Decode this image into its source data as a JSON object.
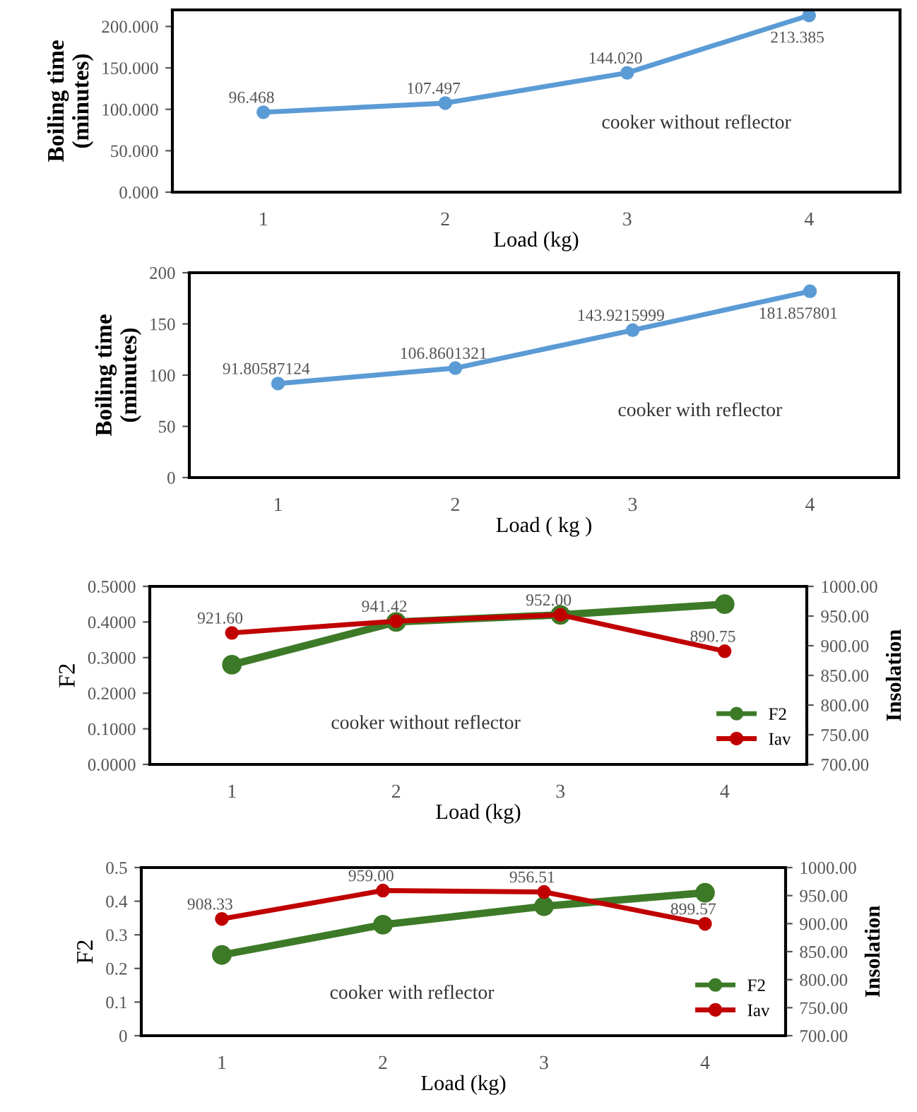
{
  "chart_data": [
    {
      "type": "line",
      "categories": [
        "1",
        "2",
        "3",
        "4"
      ],
      "xlabel": "Load (kg)",
      "ylabel": "Boiling time\n(minutes)",
      "ylim": [
        0,
        220
      ],
      "yticks": [
        {
          "value": 0,
          "label": "0.000"
        },
        {
          "value": 50,
          "label": "50.000"
        },
        {
          "value": 100,
          "label": "100.000"
        },
        {
          "value": 150,
          "label": "150.000"
        },
        {
          "value": 200,
          "label": "200.000"
        }
      ],
      "series": [
        {
          "color": "#5b9bd5",
          "values": [
            96.468,
            107.497,
            144.02,
            213.385
          ],
          "value_labels": [
            "96.468",
            "107.497",
            "144.020",
            "213.385"
          ]
        }
      ],
      "marker": "circle",
      "grid": false,
      "legend": false,
      "annotations": [
        "cooker without reflector"
      ]
    },
    {
      "type": "line",
      "categories": [
        "1",
        "2",
        "3",
        "4"
      ],
      "xlabel": "Load ( kg )",
      "ylabel": "Boiling time\n(minutes)",
      "ylim": [
        0,
        200
      ],
      "yticks": [
        0,
        50,
        100,
        150,
        200
      ],
      "series": [
        {
          "color": "#5b9bd5",
          "values": [
            91.80587124,
            106.8601321,
            143.9215999,
            181.857801
          ],
          "value_labels": [
            "91.80587124",
            "106.8601321",
            "143.9215999",
            "181.857801"
          ]
        }
      ],
      "marker": "circle",
      "grid": false,
      "legend": false,
      "annotations": [
        "cooker with reflector"
      ]
    },
    {
      "type": "line",
      "categories": [
        "1",
        "2",
        "3",
        "4"
      ],
      "xlabel": "Load (kg)",
      "ylabel": "F2",
      "y2label": "Insolation",
      "ylim": [
        0,
        0.5
      ],
      "yticks": [
        {
          "value": 0,
          "label": "0.0000"
        },
        {
          "value": 0.1,
          "label": "0.1000"
        },
        {
          "value": 0.2,
          "label": "0.2000"
        },
        {
          "value": 0.3,
          "label": "0.3000"
        },
        {
          "value": 0.4,
          "label": "0.4000"
        },
        {
          "value": 0.5,
          "label": "0.5000"
        }
      ],
      "y2lim": [
        700,
        1000
      ],
      "y2ticks": [
        {
          "value": 700,
          "label": "700.00"
        },
        {
          "value": 750,
          "label": "750.00"
        },
        {
          "value": 800,
          "label": "800.00"
        },
        {
          "value": 850,
          "label": "850.00"
        },
        {
          "value": 900,
          "label": "900.00"
        },
        {
          "value": 950,
          "label": "950.00"
        },
        {
          "value": 1000,
          "label": "1000.00"
        }
      ],
      "series": [
        {
          "name": "F2",
          "color": "#3d7a28",
          "values": [
            0.28,
            0.4,
            0.42,
            0.45
          ]
        },
        {
          "name": "Iav",
          "color": "#c00000",
          "axis": "y2",
          "values": [
            921.6,
            941.42,
            952.0,
            890.75
          ],
          "value_labels": [
            "921.60",
            "941.42",
            "952.00",
            "890.75"
          ]
        }
      ],
      "marker": "circle",
      "grid": false,
      "legend": "bottom right",
      "annotations": [
        "cooker without reflector"
      ]
    },
    {
      "type": "line",
      "categories": [
        "1",
        "2",
        "3",
        "4"
      ],
      "xlabel": "Load (kg)",
      "ylabel": "F2",
      "y2label": "Insolation",
      "ylim": [
        0,
        0.5
      ],
      "yticks": [
        0,
        0.1,
        0.2,
        0.3,
        0.4,
        0.5
      ],
      "y2lim": [
        700,
        1000
      ],
      "y2ticks": [
        {
          "value": 700,
          "label": "700.00"
        },
        {
          "value": 750,
          "label": "750.00"
        },
        {
          "value": 800,
          "label": "800.00"
        },
        {
          "value": 850,
          "label": "850.00"
        },
        {
          "value": 900,
          "label": "900.00"
        },
        {
          "value": 950,
          "label": "950.00"
        },
        {
          "value": 1000,
          "label": "1000.00"
        }
      ],
      "series": [
        {
          "name": "F2",
          "color": "#3d7a28",
          "values": [
            0.24,
            0.33,
            0.385,
            0.425
          ]
        },
        {
          "name": "Iav",
          "color": "#c00000",
          "axis": "y2",
          "values": [
            908.33,
            959.0,
            956.51,
            899.57
          ],
          "value_labels": [
            "908.33",
            "959.00",
            "956.51",
            "899.57"
          ]
        }
      ],
      "marker": "circle",
      "grid": false,
      "legend": "bottom right",
      "annotations": [
        "cooker with reflector"
      ]
    }
  ]
}
